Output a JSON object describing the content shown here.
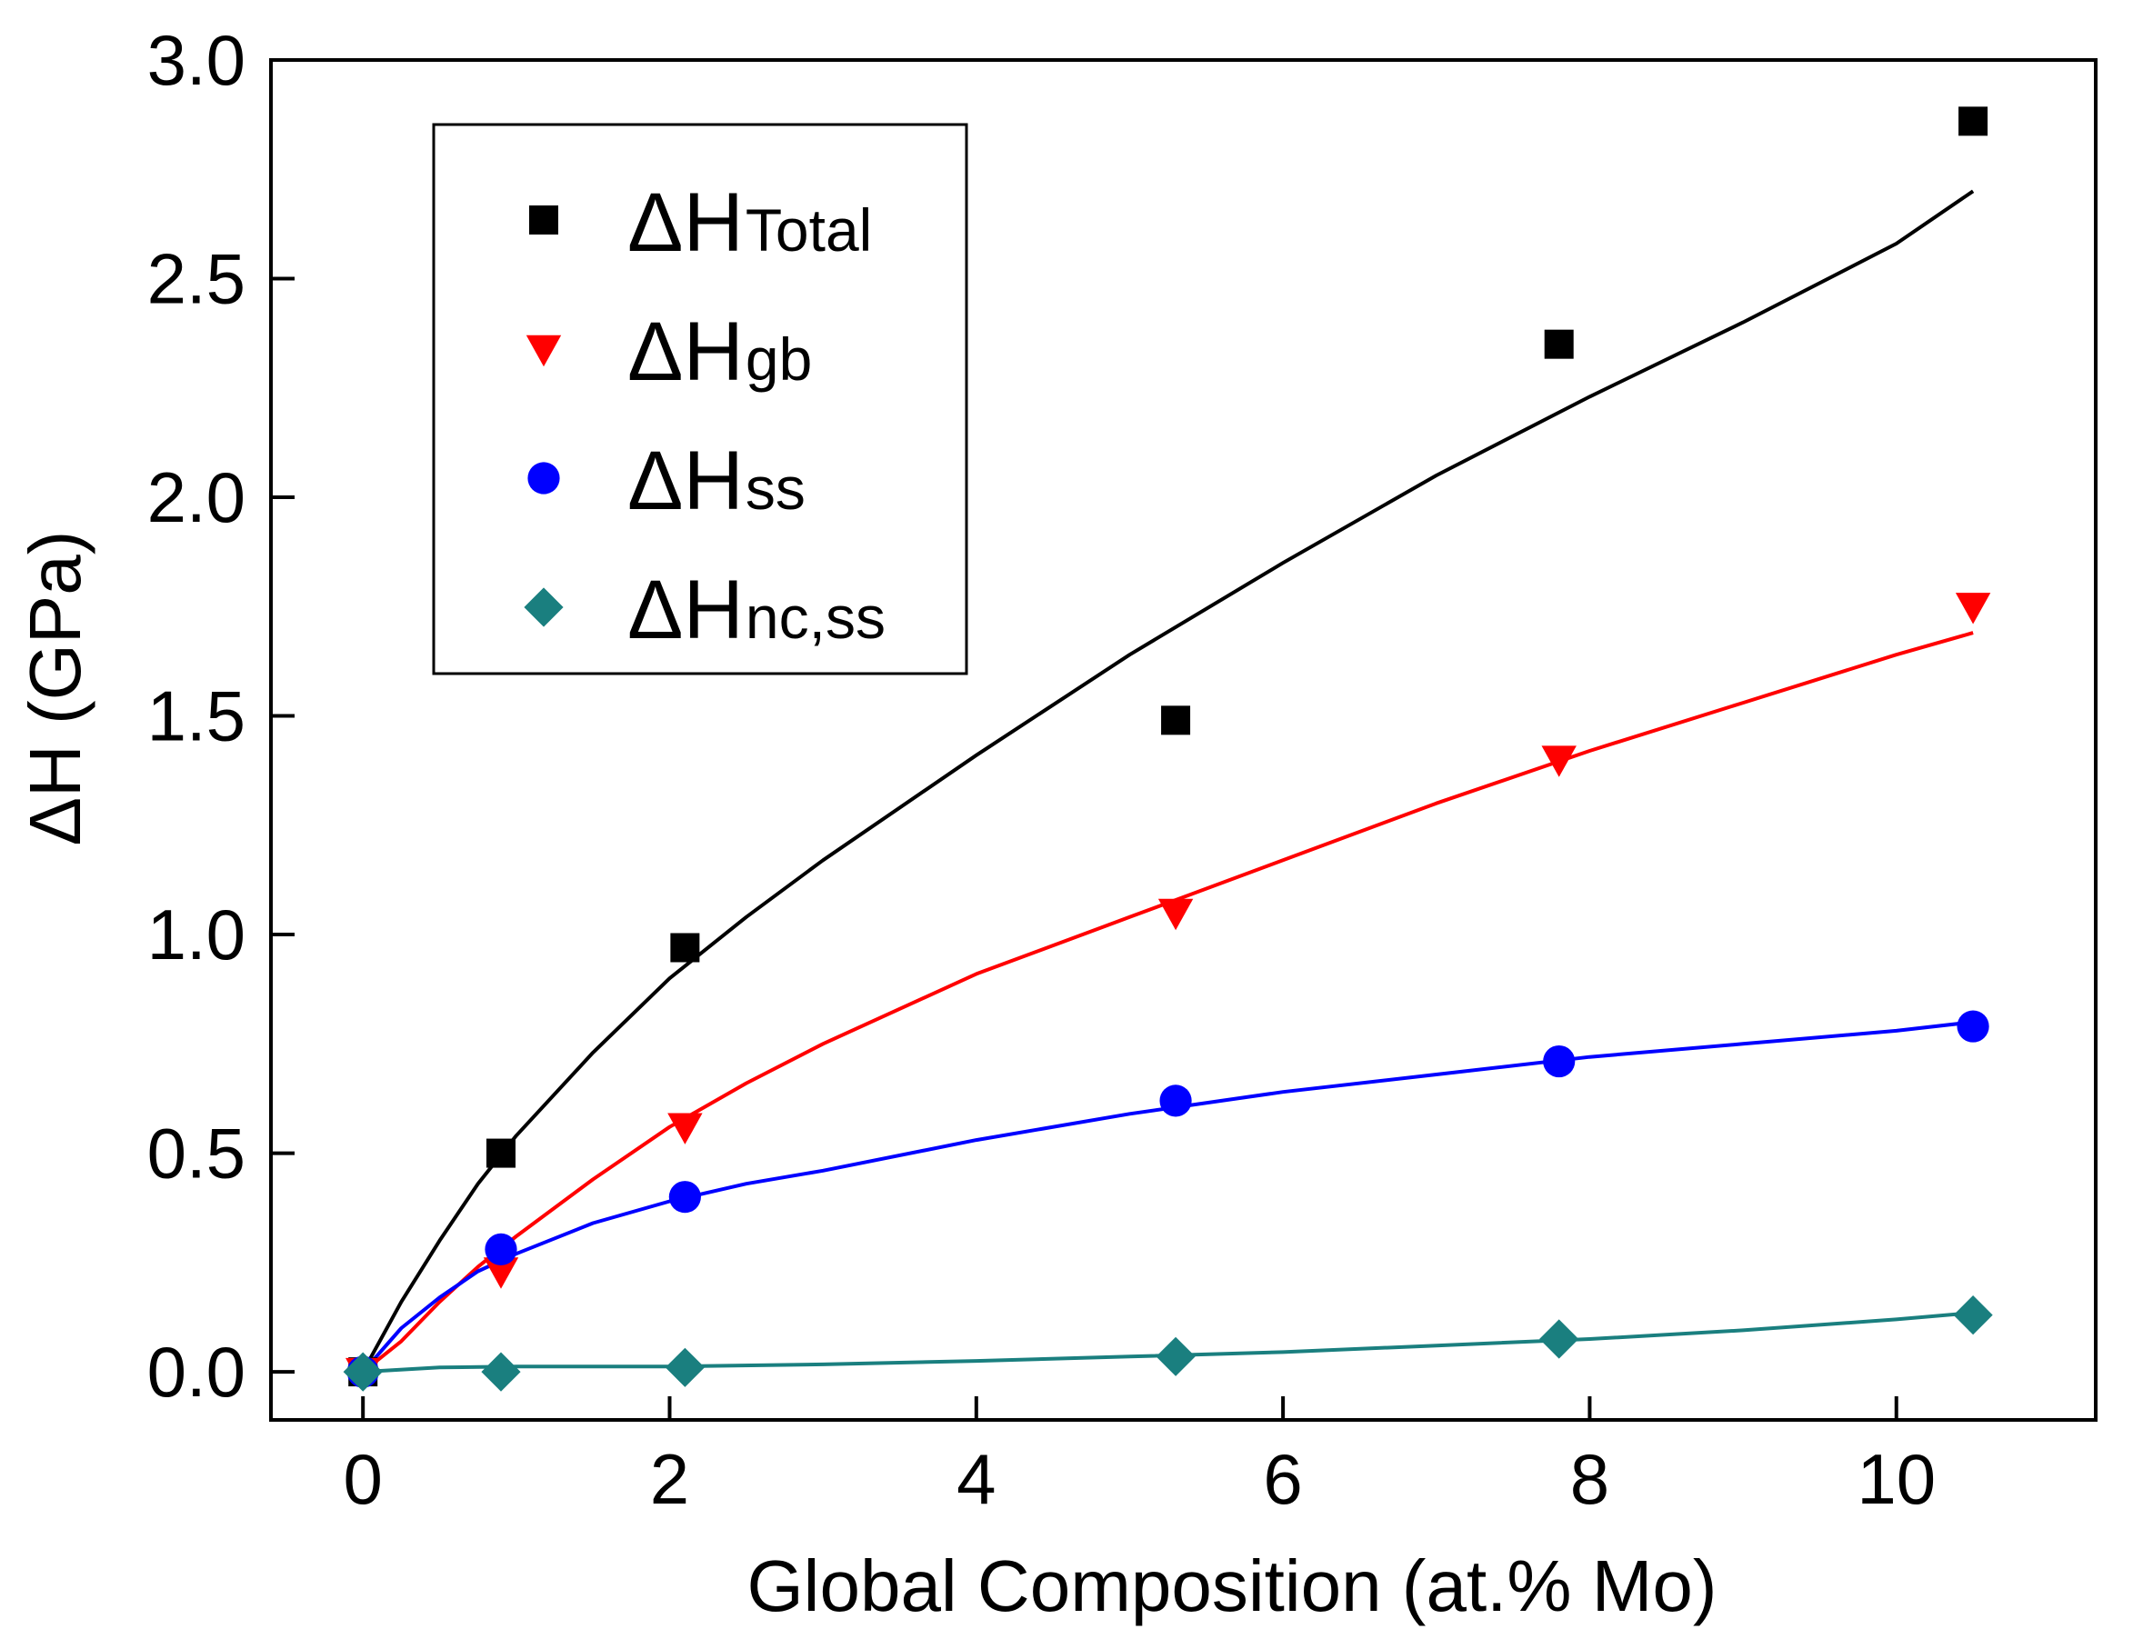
{
  "chart_data": {
    "type": "scatter",
    "title": "",
    "xlabel": "Global Composition (at.% Mo)",
    "ylabel": "ΔH (GPa)",
    "xlim": [
      -0.6,
      11.3
    ],
    "ylim": [
      -0.11,
      3.0
    ],
    "xticks": [
      0,
      2,
      4,
      6,
      8,
      10
    ],
    "xtick_labels": [
      "0",
      "2",
      "4",
      "6",
      "8",
      "10"
    ],
    "yticks": [
      0.0,
      0.5,
      1.0,
      1.5,
      2.0,
      2.5,
      3.0
    ],
    "ytick_labels": [
      "0.0",
      "0.5",
      "1.0",
      "1.5",
      "2.0",
      "2.5",
      "3.0"
    ],
    "grid": false,
    "legend_position": "top-left",
    "series": [
      {
        "name": "ΔHTotal",
        "legend_main": "ΔH",
        "legend_sub": "Total",
        "marker": "square",
        "color": "#000000",
        "x": [
          0,
          0.9,
          2.1,
          5.3,
          7.8,
          10.5
        ],
        "values": [
          0.0,
          0.5,
          0.97,
          1.49,
          2.35,
          2.86
        ],
        "fit": {
          "x": [
            0,
            0.25,
            0.5,
            0.75,
            1.0,
            1.5,
            2.0,
            2.5,
            3.0,
            4.0,
            5.0,
            6.0,
            7.0,
            8.0,
            9.0,
            10.0,
            10.5
          ],
          "values": [
            0.0,
            0.16,
            0.3,
            0.43,
            0.54,
            0.73,
            0.9,
            1.04,
            1.17,
            1.41,
            1.64,
            1.85,
            2.05,
            2.23,
            2.4,
            2.58,
            2.7
          ]
        }
      },
      {
        "name": "ΔHgb",
        "legend_main": "ΔH",
        "legend_sub": "gb",
        "marker": "triangle-down",
        "color": "#ff0000",
        "x": [
          0,
          0.9,
          2.1,
          5.3,
          7.8,
          10.5
        ],
        "values": [
          0.0,
          0.23,
          0.56,
          1.05,
          1.4,
          1.75
        ],
        "fit": {
          "x": [
            0,
            0.25,
            0.5,
            0.75,
            1.0,
            1.5,
            2.0,
            2.5,
            3.0,
            4.0,
            5.0,
            6.0,
            7.0,
            8.0,
            9.0,
            10.0,
            10.5
          ],
          "values": [
            0.0,
            0.07,
            0.16,
            0.24,
            0.31,
            0.44,
            0.56,
            0.66,
            0.75,
            0.91,
            1.04,
            1.17,
            1.3,
            1.42,
            1.53,
            1.64,
            1.69
          ]
        }
      },
      {
        "name": "ΔHss",
        "legend_main": "ΔH",
        "legend_sub": "ss",
        "marker": "circle",
        "color": "#0000ff",
        "x": [
          0,
          0.9,
          2.1,
          5.3,
          7.8,
          10.5
        ],
        "values": [
          0.0,
          0.28,
          0.4,
          0.62,
          0.71,
          0.79
        ],
        "fit": {
          "x": [
            0,
            0.25,
            0.5,
            0.75,
            1.0,
            1.5,
            2.0,
            2.5,
            3.0,
            4.0,
            5.0,
            6.0,
            7.0,
            8.0,
            9.0,
            10.0,
            10.5
          ],
          "values": [
            0.0,
            0.1,
            0.17,
            0.23,
            0.27,
            0.34,
            0.39,
            0.43,
            0.46,
            0.53,
            0.59,
            0.64,
            0.68,
            0.72,
            0.75,
            0.78,
            0.8
          ]
        }
      },
      {
        "name": "ΔHnc,ss",
        "legend_main": "ΔH",
        "legend_sub": "nc,ss",
        "marker": "diamond",
        "color": "#1a7f7f",
        "x": [
          0,
          0.9,
          2.1,
          5.3,
          7.8,
          10.5
        ],
        "values": [
          0.0,
          0.0,
          0.01,
          0.035,
          0.075,
          0.13
        ],
        "fit": {
          "x": [
            0,
            0.5,
            1.0,
            2.0,
            3.0,
            4.0,
            5.0,
            6.0,
            7.0,
            8.0,
            9.0,
            10.0,
            10.5
          ],
          "values": [
            0.0,
            0.01,
            0.012,
            0.012,
            0.017,
            0.025,
            0.035,
            0.045,
            0.06,
            0.075,
            0.095,
            0.12,
            0.135
          ]
        }
      }
    ]
  }
}
